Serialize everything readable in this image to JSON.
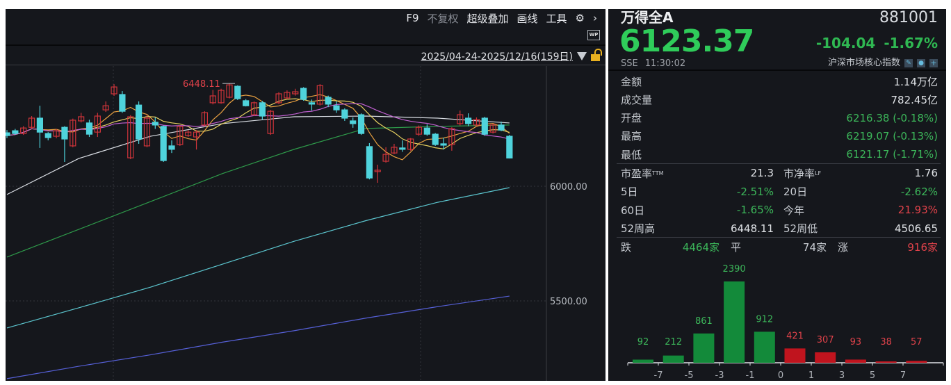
{
  "toolbar": {
    "f9": "F9",
    "adjust": "不复权",
    "overlay": "超级叠加",
    "draw": "画线",
    "tools": "工具",
    "settings_icon": "gear-icon",
    "more_icon": "chevron-right-icon",
    "wp": "WP"
  },
  "range": {
    "text": "2025/04-24-2025/12/16(159日)",
    "lock_icon": "unlock-icon"
  },
  "quote": {
    "name": "万得全A",
    "code": "881001",
    "price": "6123.37",
    "change": "-104.04",
    "change_pct": "-1.67%",
    "exchange": "SSE",
    "time": "11:30:02",
    "category": "沪深市场核心指数"
  },
  "stats": [
    {
      "label": "金额",
      "value": "1.14万亿",
      "color": "neutral"
    },
    {
      "label": "成交量",
      "value": "782.45亿",
      "color": "neutral"
    },
    {
      "label": "开盘",
      "value": "6216.38 (-0.18%)",
      "color": "green"
    },
    {
      "label": "最高",
      "value": "6219.07 (-0.13%)",
      "color": "green"
    },
    {
      "label": "最低",
      "value": "6121.17 (-1.71%)",
      "color": "green"
    }
  ],
  "grid_stats": [
    {
      "l1": "市盈率",
      "s1": "TTM",
      "v1": "21.3",
      "c1": "neutral",
      "l2": "市净率",
      "s2": "LF",
      "v2": "1.76",
      "c2": "neutral"
    },
    {
      "l1": "5日",
      "s1": "",
      "v1": "-2.51%",
      "c1": "green",
      "l2": "20日",
      "s2": "",
      "v2": "-2.62%",
      "c2": "green"
    },
    {
      "l1": "60日",
      "s1": "",
      "v1": "-1.65%",
      "c1": "green",
      "l2": "今年",
      "s2": "",
      "v2": "21.93%",
      "c2": "red"
    },
    {
      "l1": "52周高",
      "s1": "",
      "v1": "6448.11",
      "c1": "neutral",
      "l2": "52周低",
      "s2": "",
      "v2": "4506.65",
      "c2": "neutral"
    }
  ],
  "breadth": {
    "down_label": "跌",
    "down": "4464家",
    "flat_label": "平",
    "flat": "74家",
    "up_label": "涨",
    "up": "916家"
  },
  "colors": {
    "up": "#d0343a",
    "down": "#4fd3dc",
    "green_text": "#3cb75a",
    "red_text": "#e0424a",
    "price": "#2fcc5a",
    "hist_green": "#138a3a",
    "hist_red": "#c0141e"
  },
  "chart_data": [
    {
      "type": "candlestick",
      "ylim": [
        5350,
        6520
      ],
      "yticks": [
        "6000.00",
        "5500.00"
      ],
      "ytick_values": [
        6000,
        5500
      ],
      "annotation": "6448.11",
      "grid": true,
      "ohlc": [
        [
          6233,
          6221,
          6245,
          6210
        ],
        [
          6242,
          6230,
          6250,
          6224
        ],
        [
          6230,
          6254,
          6262,
          6224
        ],
        [
          6257,
          6297,
          6306,
          6250
        ],
        [
          6297,
          6236,
          6351,
          6167
        ],
        [
          6230,
          6212,
          6236,
          6200
        ],
        [
          6218,
          6242,
          6250,
          6209
        ],
        [
          6257,
          6206,
          6262,
          6106
        ],
        [
          6176,
          6288,
          6295,
          6170
        ],
        [
          6285,
          6303,
          6320,
          6278
        ],
        [
          6276,
          6227,
          6290,
          6215
        ],
        [
          6236,
          6306,
          6320,
          6215
        ],
        [
          6333,
          6351,
          6370,
          6324
        ],
        [
          6403,
          6433,
          6445,
          6394
        ],
        [
          6400,
          6327,
          6415,
          6320
        ],
        [
          6124,
          6303,
          6310,
          6118
        ],
        [
          6354,
          6206,
          6370,
          6185
        ],
        [
          6176,
          6297,
          6310,
          6170
        ],
        [
          6279,
          6267,
          6300,
          6250
        ],
        [
          6261,
          6112,
          6265,
          6106
        ],
        [
          6176,
          6161,
          6200,
          6145
        ],
        [
          6182,
          6261,
          6265,
          6176
        ],
        [
          6221,
          6236,
          6245,
          6215
        ],
        [
          6215,
          6236,
          6245,
          6160
        ],
        [
          6267,
          6321,
          6327,
          6260
        ],
        [
          6364,
          6394,
          6420,
          6357
        ],
        [
          6364,
          6418,
          6425,
          6360
        ],
        [
          6388,
          6442,
          6448,
          6383
        ],
        [
          6436,
          6382,
          6440,
          6376
        ],
        [
          6373,
          6351,
          6380,
          6348
        ],
        [
          6312,
          6364,
          6370,
          6306
        ],
        [
          6364,
          6306,
          6372,
          6290
        ],
        [
          6230,
          6327,
          6333,
          6224
        ],
        [
          6364,
          6403,
          6410,
          6358
        ],
        [
          6385,
          6409,
          6418,
          6380
        ],
        [
          6403,
          6412,
          6425,
          6395
        ],
        [
          6427,
          6379,
          6432,
          6373
        ],
        [
          6364,
          6358,
          6378,
          6330
        ],
        [
          6358,
          6439,
          6445,
          6352
        ],
        [
          6388,
          6358,
          6395,
          6345
        ],
        [
          6351,
          6333,
          6370,
          6320
        ],
        [
          6333,
          6297,
          6340,
          6285
        ],
        [
          6285,
          6273,
          6300,
          6255
        ],
        [
          6312,
          6230,
          6318,
          6224
        ],
        [
          6173,
          6036,
          6188,
          6030
        ],
        [
          6064,
          6070,
          6094,
          6015
        ],
        [
          6109,
          6139,
          6170,
          6103
        ],
        [
          6145,
          6170,
          6185,
          6140
        ],
        [
          6167,
          6161,
          6200,
          6150
        ],
        [
          6161,
          6206,
          6210,
          6155
        ],
        [
          6227,
          6257,
          6265,
          6220
        ],
        [
          6254,
          6227,
          6270,
          6220
        ],
        [
          6227,
          6182,
          6232,
          6176
        ],
        [
          6185,
          6179,
          6212,
          6160
        ],
        [
          6182,
          6251,
          6257,
          6155
        ],
        [
          6273,
          6312,
          6330,
          6265
        ],
        [
          6297,
          6273,
          6318,
          6262
        ],
        [
          6267,
          6291,
          6300,
          6262
        ],
        [
          6297,
          6227,
          6303,
          6220
        ],
        [
          6236,
          6267,
          6273,
          6230
        ],
        [
          6267,
          6245,
          6282,
          6240
        ],
        [
          6218,
          6123,
          6224,
          6121
        ]
      ],
      "ma_lines": [
        {
          "color": "#d9dde3",
          "values": [
            5964,
            6121,
            6218,
            6273,
            6303,
            6306,
            6297,
            6276
          ]
        },
        {
          "color": "#2e9a4a",
          "values": [
            5691,
            5812,
            5933,
            6055,
            6161,
            6252,
            6261,
            6267
          ]
        },
        {
          "color": "#5cc6cf",
          "values": [
            5382,
            5470,
            5560,
            5660,
            5760,
            5850,
            5930,
            5994
          ]
        },
        {
          "color": "#5660d8",
          "values": [
            5161,
            5215,
            5265,
            5320,
            5370,
            5425,
            5475,
            5521
          ]
        }
      ],
      "short_ma": [
        {
          "period": 5,
          "color": "#e8a040"
        },
        {
          "period": 10,
          "color": "#e6d060"
        },
        {
          "period": 20,
          "color": "#c060d0"
        }
      ]
    },
    {
      "type": "bar",
      "categories": [
        "<-7",
        "-7~-5",
        "-5~-3",
        "-3~-1",
        "-1~0",
        "0~1",
        "1~3",
        "3~5",
        "5~7",
        ">7"
      ],
      "xticks": [
        "-7",
        "-5",
        "-3",
        "-1",
        "0",
        "1",
        "3",
        "5",
        "7"
      ],
      "values": [
        92,
        212,
        861,
        2390,
        912,
        421,
        307,
        93,
        38,
        57
      ],
      "labels": [
        "92",
        "212",
        "861",
        "2390",
        "912",
        "421",
        "307",
        "93",
        "38",
        "57"
      ],
      "bar_colors": [
        "green",
        "green",
        "green",
        "green",
        "green",
        "red",
        "red",
        "red",
        "red",
        "red"
      ]
    }
  ]
}
